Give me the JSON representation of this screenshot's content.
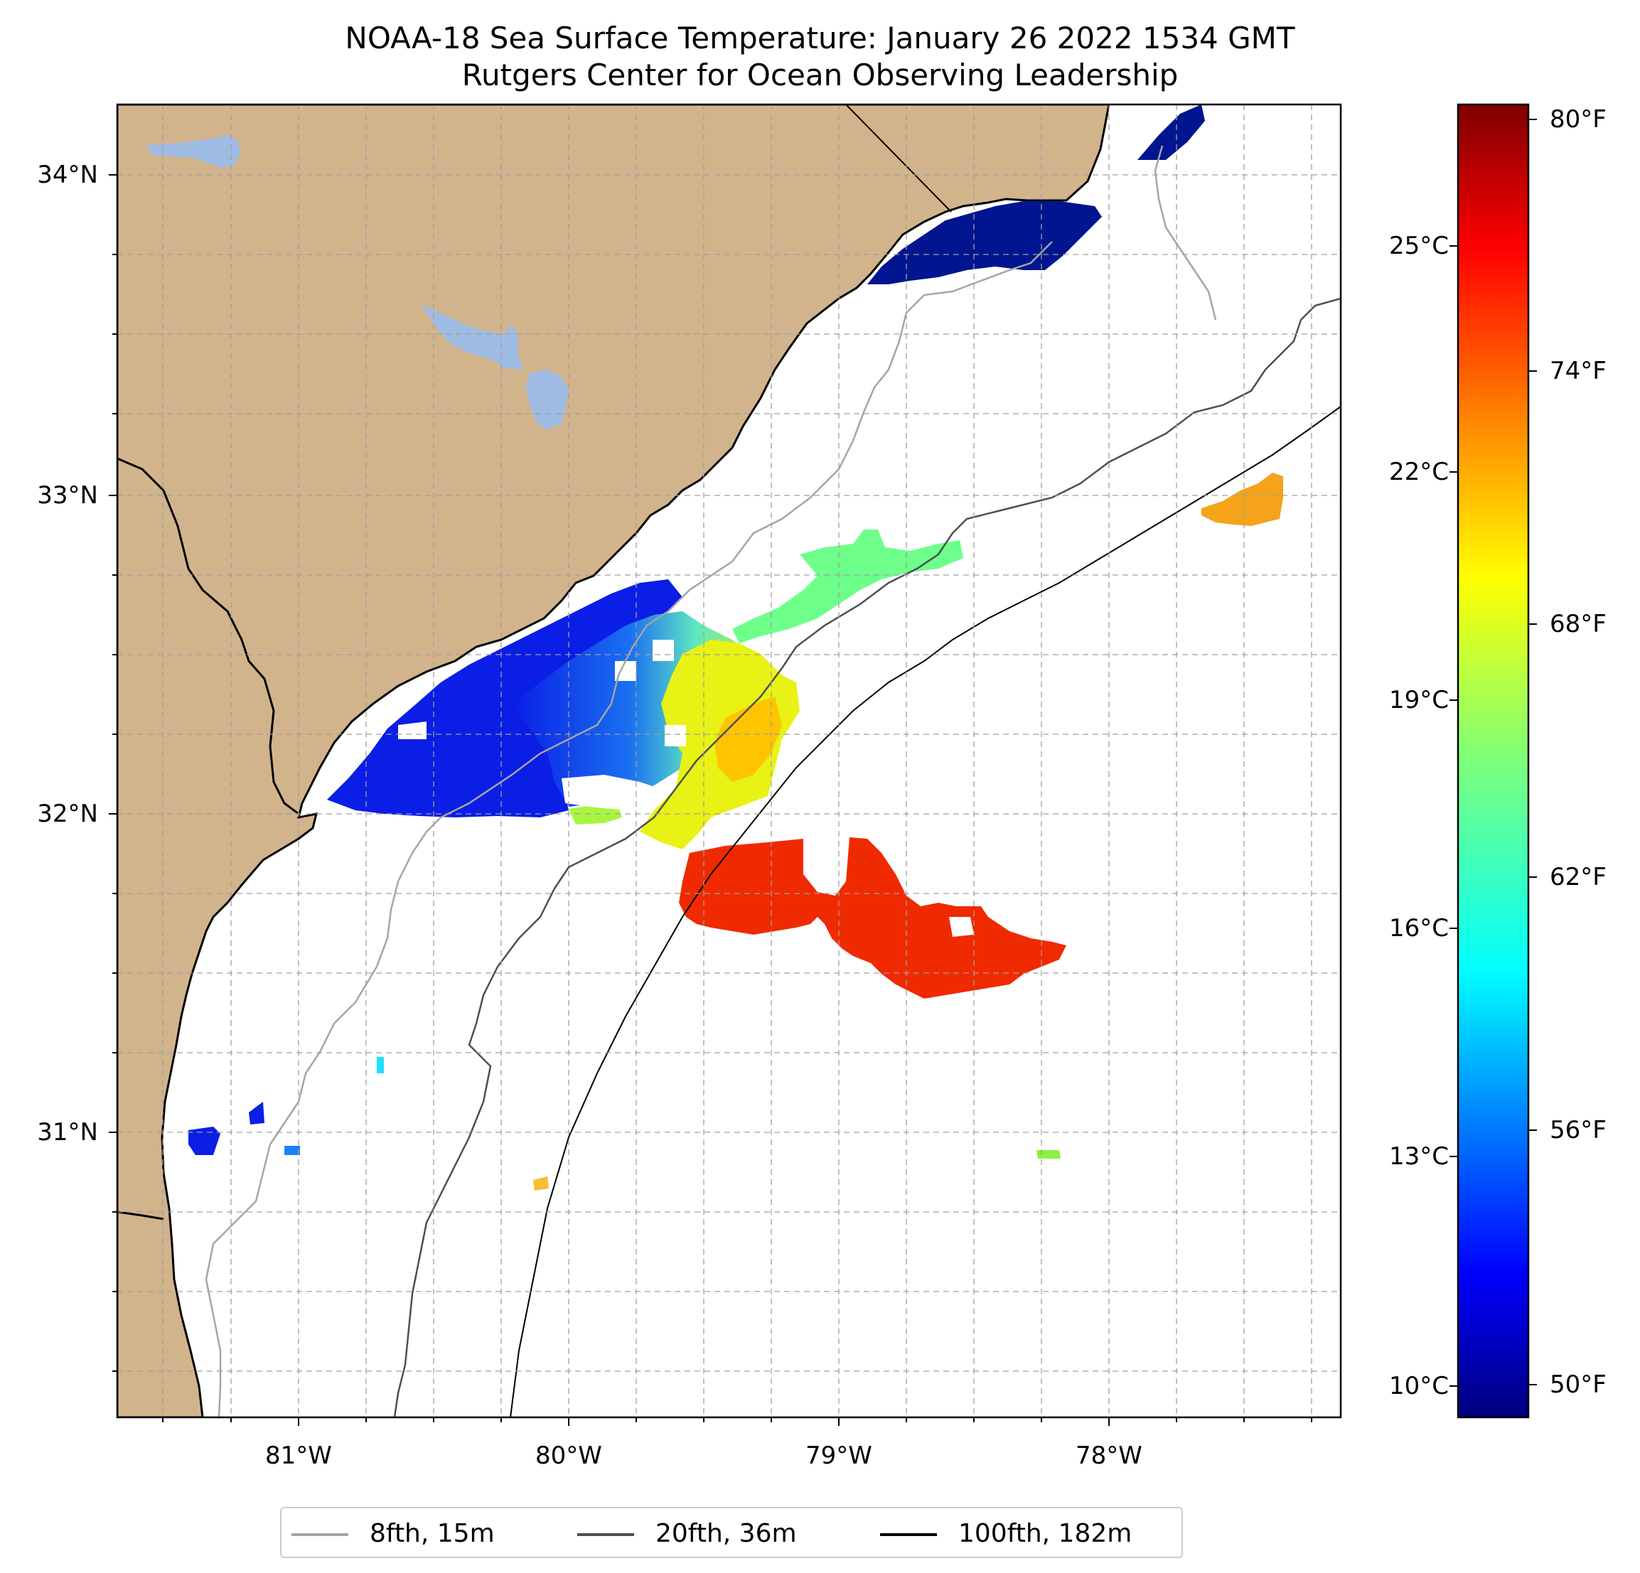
{
  "title": {
    "line1": "NOAA-18 Sea Surface Temperature: January 26 2022 1534 GMT",
    "line2": "Rutgers Center for Ocean Observing Leadership"
  },
  "map": {
    "lat_ticks": [
      "34°N",
      "33°N",
      "32°N",
      "31°N"
    ],
    "lon_ticks": [
      "81°W",
      "80°W",
      "79°W",
      "78°W"
    ],
    "land_color": "#d2b48c",
    "lake_color": "#9ebbe3",
    "ocean_color": "#ffffff"
  },
  "colorbar": {
    "celsius_labels": [
      "25°C",
      "22°C",
      "19°C",
      "16°C",
      "13°C",
      "10°C"
    ],
    "fahrenheit_labels": [
      "80°F",
      "74°F",
      "68°F",
      "62°F",
      "56°F",
      "50°F"
    ],
    "colormap": "jet",
    "celsius_range": [
      9.6,
      27.0
    ]
  },
  "legend": {
    "items": [
      {
        "label": "8fth, 15m",
        "color": "#a5a5a5"
      },
      {
        "label": "20fth, 36m",
        "color": "#4f4f4f"
      },
      {
        "label": "100fth, 182m",
        "color": "#000000"
      }
    ]
  },
  "sst_regions": [
    {
      "name": "north-cold-patch",
      "temp_c": 10.2
    },
    {
      "name": "nearshore-cold-water",
      "temp_c": 11.0
    },
    {
      "name": "mid-shelf-gradient",
      "temp_c": 14.5
    },
    {
      "name": "green-band",
      "temp_c": 17.5
    },
    {
      "name": "yellow-shelf-water",
      "temp_c": 20.5
    },
    {
      "name": "gulf-stream-warm-water",
      "temp_c": 25.2
    },
    {
      "name": "offshore-patch-east",
      "temp_c": 22.0
    }
  ]
}
